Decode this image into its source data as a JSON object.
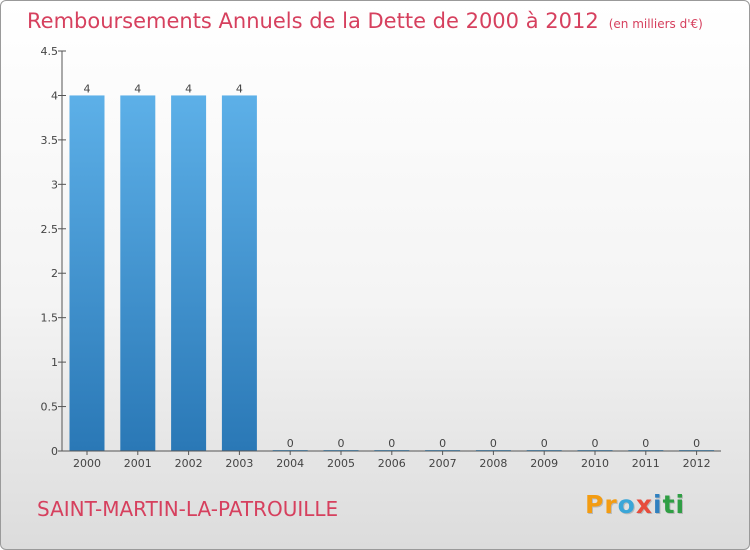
{
  "header": {
    "title": "Remboursements Annuels de la Dette de 2000 à 2012",
    "unit": "(en milliers d'€)"
  },
  "footer": {
    "place": "SAINT-MARTIN-LA-PATROUILLE",
    "logo_text": "Proxiti",
    "logo_colors": [
      "#f39c12",
      "#f39c12",
      "#3aa6d8",
      "#e74c3c",
      "#2f80c0",
      "#2f9e44",
      "#2f9e44"
    ]
  },
  "chart_data": {
    "type": "bar",
    "title": "Remboursements Annuels de la Dette de 2000 à 2012",
    "subtitle": "(en milliers d'€)",
    "categories": [
      "2000",
      "2001",
      "2002",
      "2003",
      "2004",
      "2005",
      "2006",
      "2007",
      "2008",
      "2009",
      "2010",
      "2011",
      "2012"
    ],
    "values": [
      4,
      4,
      4,
      4,
      0,
      0,
      0,
      0,
      0,
      0,
      0,
      0,
      0
    ],
    "data_labels": [
      "4",
      "4",
      "4",
      "4",
      "0",
      "0",
      "0",
      "0",
      "0",
      "0",
      "0",
      "0",
      "0"
    ],
    "yticks": [
      "0",
      "0.5",
      "1",
      "1.5",
      "2",
      "2.5",
      "3",
      "3.5",
      "4",
      "4.5"
    ],
    "ylim": [
      0,
      4.5
    ],
    "bar_color": "#4a9fdc",
    "bar_color_dark": "#2a78b6",
    "grid": false
  }
}
